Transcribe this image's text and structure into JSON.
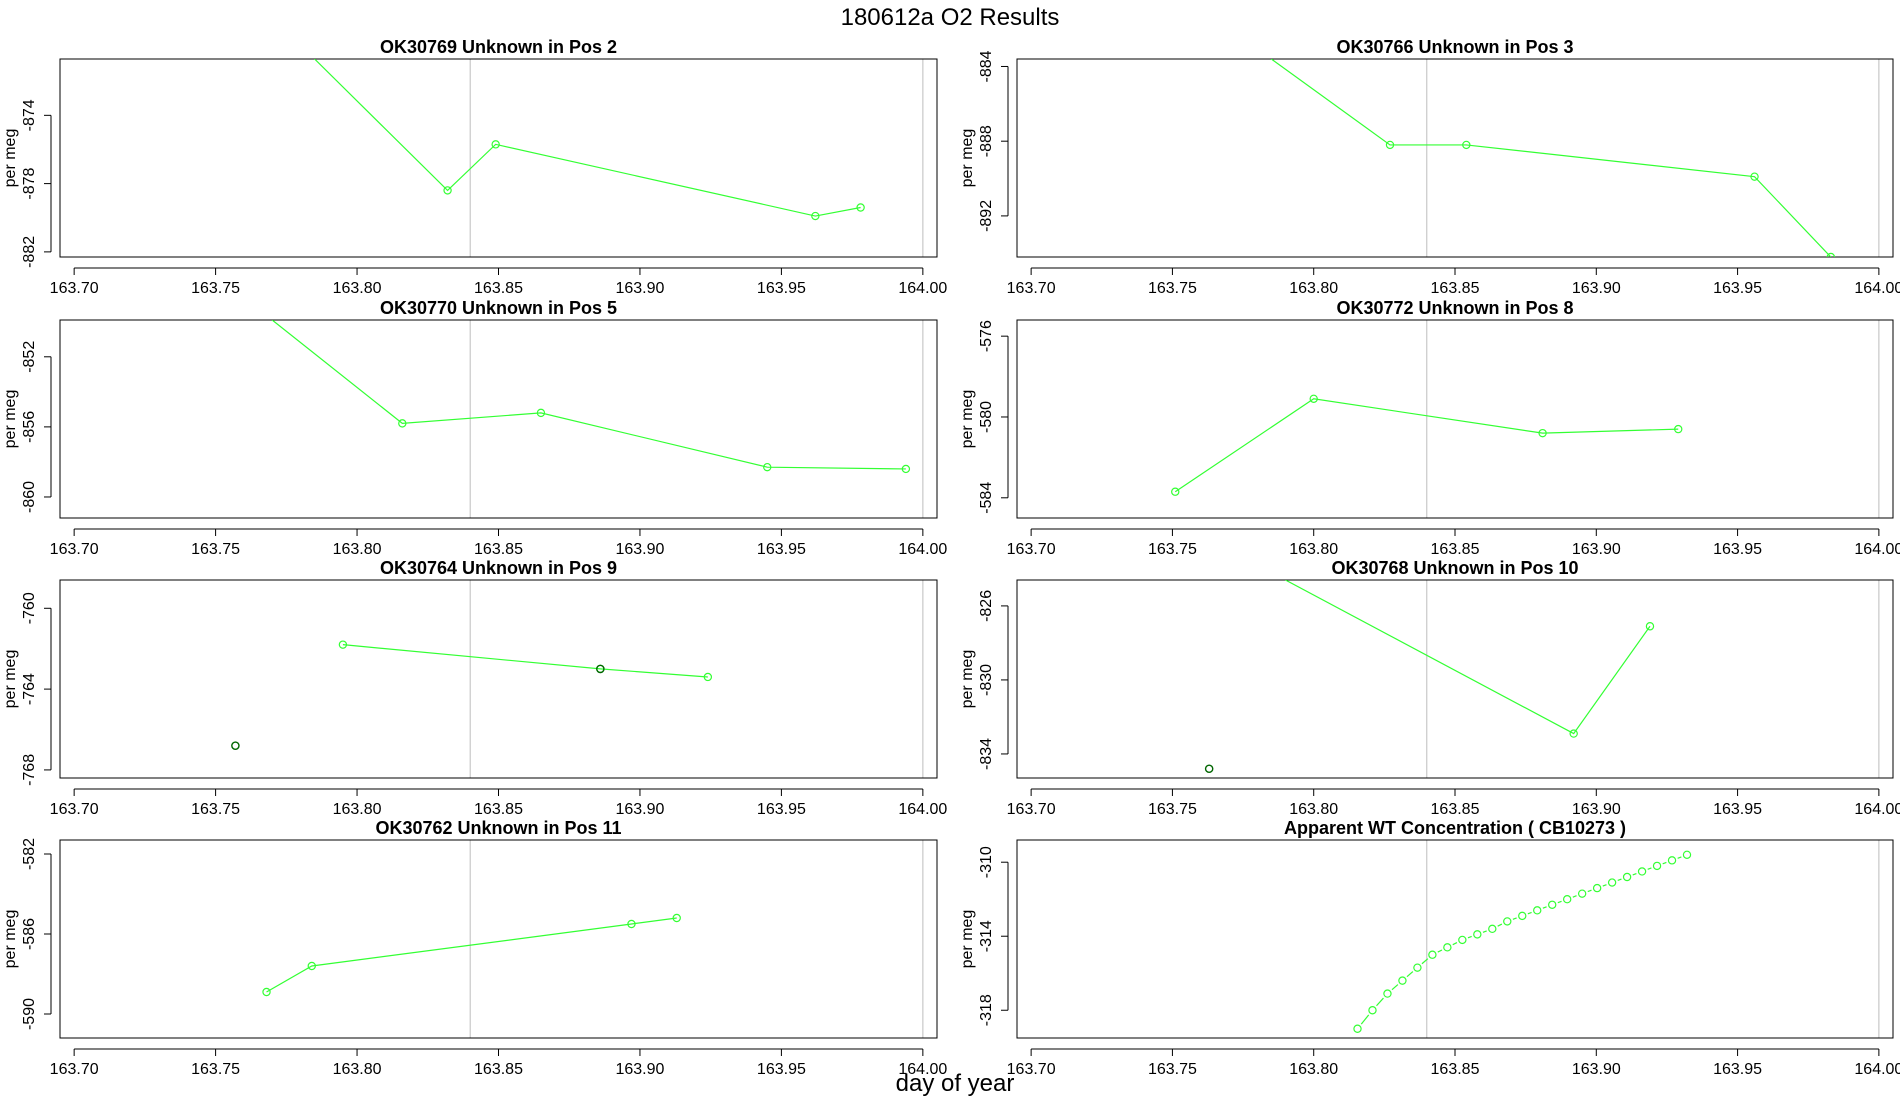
{
  "title": "180612a  O2 Results",
  "xlabel": "day of year",
  "colors": {
    "series": "#33ff33",
    "marker_dark": "#006600",
    "refline": "#c8c8c8",
    "axis": "#000000"
  },
  "chart_data": [
    {
      "type": "line",
      "title": "OK30769    Unknown in Pos 2",
      "ylabel": "per meg",
      "xlim": [
        163.695,
        164.005
      ],
      "ylim": [
        -882.3,
        -870.7
      ],
      "xticks": [
        "163.70",
        "163.75",
        "163.80",
        "163.85",
        "163.90",
        "163.95",
        "164.00"
      ],
      "yticks": [
        "-874",
        "-878",
        "-882"
      ],
      "vlines": [
        163.84,
        164.0
      ],
      "series": [
        {
          "name": "main",
          "x": [
            163.785,
            163.832,
            163.849,
            163.962,
            163.978
          ],
          "y": [
            -870.7,
            -878.4,
            -875.7,
            -879.9,
            -879.4
          ],
          "markers": [
            false,
            true,
            true,
            true,
            true
          ]
        }
      ]
    },
    {
      "type": "line",
      "title": "OK30766    Unknown in Pos 3",
      "ylabel": "per meg",
      "xlim": [
        163.695,
        164.005
      ],
      "ylim": [
        -894.2,
        -883.6
      ],
      "xticks": [
        "163.70",
        "163.75",
        "163.80",
        "163.85",
        "163.90",
        "163.95",
        "164.00"
      ],
      "yticks": [
        "-884",
        "-888",
        "-892"
      ],
      "vlines": [
        163.84,
        164.0
      ],
      "series": [
        {
          "name": "main",
          "x": [
            163.785,
            163.827,
            163.854,
            163.956,
            163.983
          ],
          "y": [
            -883.6,
            -888.2,
            -888.2,
            -889.9,
            -894.2
          ],
          "markers": [
            false,
            true,
            true,
            true,
            true
          ]
        }
      ]
    },
    {
      "type": "line",
      "title": "OK30770    Unknown in Pos 5",
      "ylabel": "per meg",
      "xlim": [
        163.695,
        164.005
      ],
      "ylim": [
        -861.2,
        -849.9
      ],
      "xticks": [
        "163.70",
        "163.75",
        "163.80",
        "163.85",
        "163.90",
        "163.95",
        "164.00"
      ],
      "yticks": [
        "-852",
        "-856",
        "-860"
      ],
      "vlines": [
        163.84,
        164.0
      ],
      "series": [
        {
          "name": "main",
          "x": [
            163.77,
            163.816,
            163.865,
            163.945,
            163.994
          ],
          "y": [
            -849.9,
            -855.8,
            -855.2,
            -858.3,
            -858.4
          ],
          "markers": [
            false,
            true,
            true,
            true,
            true
          ]
        }
      ]
    },
    {
      "type": "line",
      "title": "OK30772    Unknown in Pos 8",
      "ylabel": "per meg",
      "xlim": [
        163.695,
        164.005
      ],
      "ylim": [
        -585.0,
        -575.2
      ],
      "xticks": [
        "163.70",
        "163.75",
        "163.80",
        "163.85",
        "163.90",
        "163.95",
        "164.00"
      ],
      "yticks": [
        "-576",
        "-580",
        "-584"
      ],
      "vlines": [
        163.84,
        164.0
      ],
      "series": [
        {
          "name": "main",
          "x": [
            163.751,
            163.8,
            163.881,
            163.929
          ],
          "y": [
            -583.7,
            -579.1,
            -580.8,
            -580.6
          ],
          "markers": [
            true,
            true,
            true,
            true
          ]
        }
      ]
    },
    {
      "type": "line",
      "title": "OK30764    Unknown in Pos 9",
      "ylabel": "per meg",
      "xlim": [
        163.695,
        164.005
      ],
      "ylim": [
        -768.4,
        -758.6
      ],
      "xticks": [
        "163.70",
        "163.75",
        "163.80",
        "163.85",
        "163.90",
        "163.95",
        "164.00"
      ],
      "yticks": [
        "-760",
        "-764",
        "-768"
      ],
      "vlines": [
        163.84,
        164.0
      ],
      "series": [
        {
          "name": "main",
          "x": [
            163.795,
            163.886,
            163.924
          ],
          "y": [
            -761.8,
            -763.0,
            -763.4
          ],
          "markers": [
            true,
            true,
            true
          ]
        }
      ],
      "dark_points": {
        "x": [
          163.757,
          163.886
        ],
        "y": [
          -766.8,
          -763.0
        ]
      }
    },
    {
      "type": "line",
      "title": "OK30768    Unknown in Pos 10",
      "ylabel": "per meg",
      "xlim": [
        163.695,
        164.005
      ],
      "ylim": [
        -835.3,
        -824.6
      ],
      "xticks": [
        "163.70",
        "163.75",
        "163.80",
        "163.85",
        "163.90",
        "163.95",
        "164.00"
      ],
      "yticks": [
        "-826",
        "-830",
        "-834"
      ],
      "vlines": [
        163.84,
        164.0
      ],
      "series": [
        {
          "name": "main",
          "x": [
            163.79,
            163.892,
            163.919
          ],
          "y": [
            -824.6,
            -832.9,
            -827.1
          ],
          "markers": [
            false,
            true,
            true
          ]
        }
      ],
      "dark_points": {
        "x": [
          163.763
        ],
        "y": [
          -834.8
        ]
      }
    },
    {
      "type": "line",
      "title": "OK30762    Unknown in Pos 11",
      "ylabel": "per meg",
      "xlim": [
        163.695,
        164.005
      ],
      "ylim": [
        -591.2,
        -581.3
      ],
      "xticks": [
        "163.70",
        "163.75",
        "163.80",
        "163.85",
        "163.90",
        "163.95",
        "164.00"
      ],
      "yticks": [
        "-582",
        "-586",
        "-590"
      ],
      "vlines": [
        163.84,
        164.0
      ],
      "series": [
        {
          "name": "main",
          "x": [
            163.768,
            163.784,
            163.897,
            163.913
          ],
          "y": [
            -588.9,
            -587.6,
            -585.5,
            -585.2
          ],
          "markers": [
            true,
            true,
            true,
            true
          ]
        }
      ]
    },
    {
      "type": "scatter",
      "title": "Apparent WT Concentration ( CB10273 )",
      "ylabel": "per meg",
      "xlim": [
        163.695,
        164.005
      ],
      "ylim": [
        -319.5,
        -308.8
      ],
      "xticks": [
        "163.70",
        "163.75",
        "163.80",
        "163.85",
        "163.90",
        "163.95",
        "164.00"
      ],
      "yticks": [
        "-310",
        "-314",
        "-318"
      ],
      "vlines": [
        163.84,
        164.0
      ],
      "series": [
        {
          "name": "main",
          "x": [
            163.8155,
            163.8208,
            163.8261,
            163.8314,
            163.8367,
            163.842,
            163.8473,
            163.8526,
            163.8579,
            163.8632,
            163.8685,
            163.8738,
            163.8791,
            163.8844,
            163.8897,
            163.895,
            163.9003,
            163.9056,
            163.9109,
            163.9162,
            163.9215,
            163.9268,
            163.9321
          ],
          "y": [
            -319.0,
            -318.0,
            -317.1,
            -316.4,
            -315.7,
            -315.0,
            -314.6,
            -314.2,
            -313.9,
            -313.6,
            -313.2,
            -312.9,
            -312.6,
            -312.3,
            -312.0,
            -311.7,
            -311.4,
            -311.1,
            -310.8,
            -310.5,
            -310.2,
            -309.9,
            -309.6
          ],
          "markers": "all",
          "connector": "dashed-gaps"
        }
      ]
    }
  ]
}
